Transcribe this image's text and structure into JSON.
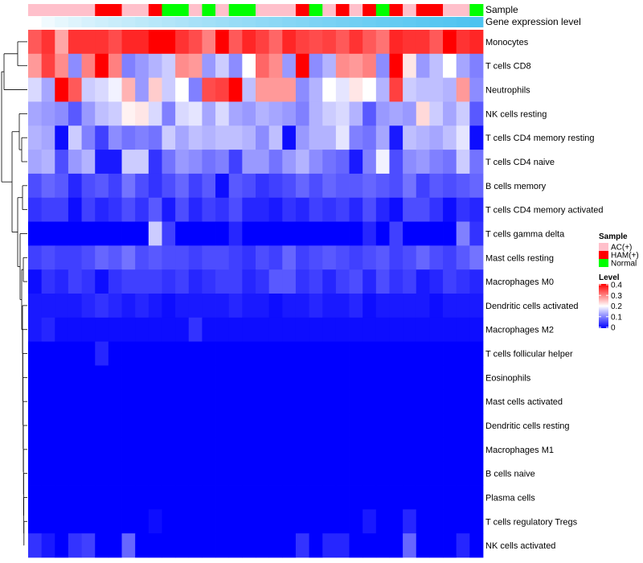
{
  "chart_data": {
    "type": "heatmap",
    "annotation_rows": [
      "Sample",
      "Gene expression level"
    ],
    "rows": [
      "Monocytes",
      "T cells CD8",
      "Neutrophils",
      "NK cells resting",
      "T cells CD4 memory resting",
      "T cells CD4 naive",
      "B cells memory",
      "T cells CD4 memory activated",
      "T cells gamma delta",
      "Mast cells resting",
      "Macrophages M0",
      "Dendritic cells activated",
      "Macrophages M2",
      "T cells follicular helper",
      "Eosinophils",
      "Mast cells activated",
      "Dendritic cells resting",
      "Macrophages M1",
      "B cells naive",
      "Plasma cells",
      "T cells regulatory  Tregs",
      "NK cells activated"
    ],
    "sample_groups": [
      "AC(+)",
      "AC(+)",
      "AC(+)",
      "AC(+)",
      "AC(+)",
      "HAM(+)",
      "HAM(+)",
      "AC(+)",
      "AC(+)",
      "HAM(+)",
      "Normal",
      "Normal",
      "AC(+)",
      "Normal",
      "AC(+)",
      "Normal",
      "Normal",
      "AC(+)",
      "AC(+)",
      "AC(+)",
      "HAM(+)",
      "Normal",
      "AC(+)",
      "HAM(+)",
      "AC(+)",
      "HAM(+)",
      "Normal",
      "HAM(+)",
      "AC(+)",
      "HAM(+)",
      "HAM(+)",
      "AC(+)",
      "AC(+)",
      "Normal"
    ],
    "values": [
      [
        0.33,
        0.36,
        0.27,
        0.36,
        0.36,
        0.36,
        0.34,
        0.37,
        0.37,
        0.4,
        0.4,
        0.36,
        0.34,
        0.3,
        0.4,
        0.33,
        0.37,
        0.35,
        0.32,
        0.37,
        0.35,
        0.34,
        0.35,
        0.33,
        0.36,
        0.33,
        0.31,
        0.37,
        0.36,
        0.36,
        0.33,
        0.4,
        0.36,
        0.37
      ],
      [
        0.28,
        0.35,
        0.29,
        0.11,
        0.3,
        0.4,
        0.3,
        0.1,
        0.12,
        0.14,
        0.16,
        0.29,
        0.28,
        0.12,
        0.16,
        0.11,
        0.2,
        0.32,
        0.29,
        0.12,
        0.4,
        0.11,
        0.14,
        0.29,
        0.28,
        0.3,
        0.11,
        0.4,
        0.22,
        0.12,
        0.15,
        0.2,
        0.13,
        0.1
      ],
      [
        0.17,
        0.13,
        0.4,
        0.33,
        0.16,
        0.17,
        0.19,
        0.26,
        0.12,
        0.24,
        0.16,
        0.2,
        0.1,
        0.34,
        0.35,
        0.4,
        0.15,
        0.28,
        0.28,
        0.28,
        0.11,
        0.14,
        0.2,
        0.18,
        0.22,
        0.2,
        0.14,
        0.35,
        0.16,
        0.15,
        0.15,
        0.14,
        0.28,
        0.11
      ],
      [
        0.13,
        0.12,
        0.11,
        0.07,
        0.12,
        0.15,
        0.16,
        0.21,
        0.22,
        0.17,
        0.1,
        0.17,
        0.18,
        0.13,
        0.17,
        0.13,
        0.12,
        0.14,
        0.13,
        0.12,
        0.1,
        0.14,
        0.16,
        0.17,
        0.14,
        0.07,
        0.12,
        0.13,
        0.12,
        0.23,
        0.16,
        0.13,
        0.16,
        0.07
      ],
      [
        0.14,
        0.13,
        0.01,
        0.16,
        0.1,
        0.05,
        0.11,
        0.09,
        0.1,
        0.09,
        0.16,
        0.13,
        0.15,
        0.14,
        0.15,
        0.15,
        0.14,
        0.11,
        0.15,
        0.01,
        0.12,
        0.14,
        0.14,
        0.18,
        0.1,
        0.09,
        0.13,
        0.02,
        0.15,
        0.14,
        0.13,
        0.15,
        0.18,
        0.01
      ],
      [
        0.13,
        0.14,
        0.06,
        0.12,
        0.14,
        0.02,
        0.02,
        0.16,
        0.16,
        0.04,
        0.09,
        0.12,
        0.11,
        0.09,
        0.1,
        0.05,
        0.12,
        0.12,
        0.09,
        0.12,
        0.14,
        0.11,
        0.09,
        0.08,
        0.02,
        0.1,
        0.19,
        0.06,
        0.11,
        0.12,
        0.1,
        0.09,
        0.16,
        0.09
      ],
      [
        0.06,
        0.08,
        0.07,
        0.03,
        0.06,
        0.07,
        0.05,
        0.09,
        0.06,
        0.04,
        0.06,
        0.08,
        0.05,
        0.07,
        0.01,
        0.07,
        0.06,
        0.04,
        0.05,
        0.06,
        0.08,
        0.06,
        0.08,
        0.07,
        0.07,
        0.08,
        0.07,
        0.06,
        0.09,
        0.05,
        0.07,
        0.06,
        0.07,
        0.08
      ],
      [
        0.04,
        0.05,
        0.05,
        0.01,
        0.05,
        0.03,
        0.04,
        0.06,
        0.04,
        0.07,
        0.02,
        0.06,
        0.03,
        0.05,
        0.04,
        0.06,
        0.03,
        0.03,
        0.02,
        0.04,
        0.03,
        0.05,
        0.04,
        0.05,
        0.03,
        0.06,
        0.03,
        0.01,
        0.06,
        0.06,
        0.04,
        0.01,
        0.04,
        0.03
      ],
      [
        0.0,
        0.0,
        0.0,
        0.0,
        0.0,
        0.0,
        0.0,
        0.0,
        0.0,
        0.16,
        0.05,
        0.0,
        0.0,
        0.0,
        0.0,
        0.03,
        0.0,
        0.0,
        0.0,
        0.0,
        0.0,
        0.0,
        0.0,
        0.0,
        0.0,
        0.03,
        0.0,
        0.05,
        0.0,
        0.0,
        0.0,
        0.0,
        0.1,
        0.04
      ],
      [
        0.05,
        0.06,
        0.05,
        0.05,
        0.06,
        0.08,
        0.07,
        0.09,
        0.06,
        0.07,
        0.06,
        0.06,
        0.05,
        0.06,
        0.06,
        0.05,
        0.04,
        0.06,
        0.05,
        0.08,
        0.05,
        0.06,
        0.07,
        0.06,
        0.05,
        0.06,
        0.07,
        0.05,
        0.06,
        0.08,
        0.06,
        0.05,
        0.07,
        0.09
      ],
      [
        0.01,
        0.04,
        0.03,
        0.05,
        0.04,
        0.01,
        0.04,
        0.05,
        0.05,
        0.05,
        0.04,
        0.05,
        0.03,
        0.04,
        0.05,
        0.05,
        0.03,
        0.04,
        0.07,
        0.07,
        0.04,
        0.05,
        0.03,
        0.05,
        0.06,
        0.03,
        0.06,
        0.04,
        0.05,
        0.02,
        0.03,
        0.05,
        0.04,
        0.03
      ],
      [
        0.02,
        0.02,
        0.02,
        0.02,
        0.03,
        0.04,
        0.03,
        0.02,
        0.03,
        0.02,
        0.01,
        0.02,
        0.02,
        0.02,
        0.02,
        0.03,
        0.02,
        0.02,
        0.01,
        0.02,
        0.02,
        0.03,
        0.02,
        0.02,
        0.03,
        0.01,
        0.02,
        0.02,
        0.02,
        0.02,
        0.01,
        0.02,
        0.02,
        0.02
      ],
      [
        0.02,
        0.03,
        0.01,
        0.01,
        0.01,
        0.01,
        0.01,
        0.01,
        0.01,
        0.01,
        0.01,
        0.01,
        0.04,
        0.01,
        0.01,
        0.01,
        0.01,
        0.01,
        0.01,
        0.01,
        0.01,
        0.01,
        0.01,
        0.01,
        0.01,
        0.01,
        0.01,
        0.01,
        0.01,
        0.01,
        0.01,
        0.01,
        0.01,
        0.01
      ],
      [
        0.0,
        0.0,
        0.0,
        0.0,
        0.0,
        0.03,
        0.0,
        0.0,
        0.0,
        0.0,
        0.0,
        0.0,
        0.0,
        0.0,
        0.0,
        0.0,
        0.0,
        0.0,
        0.0,
        0.0,
        0.0,
        0.0,
        0.0,
        0.0,
        0.0,
        0.0,
        0.0,
        0.0,
        0.0,
        0.0,
        0.0,
        0.0,
        0.0,
        0.0
      ],
      [
        0.0,
        0.0,
        0.0,
        0.0,
        0.0,
        0.0,
        0.0,
        0.0,
        0.0,
        0.0,
        0.0,
        0.0,
        0.0,
        0.0,
        0.0,
        0.0,
        0.0,
        0.0,
        0.0,
        0.0,
        0.0,
        0.0,
        0.0,
        0.0,
        0.0,
        0.0,
        0.0,
        0.0,
        0.0,
        0.0,
        0.0,
        0.0,
        0.0,
        0.0
      ],
      [
        0.0,
        0.0,
        0.0,
        0.0,
        0.0,
        0.0,
        0.0,
        0.0,
        0.0,
        0.0,
        0.0,
        0.0,
        0.0,
        0.0,
        0.0,
        0.0,
        0.0,
        0.0,
        0.0,
        0.0,
        0.0,
        0.0,
        0.0,
        0.0,
        0.0,
        0.0,
        0.0,
        0.0,
        0.0,
        0.0,
        0.0,
        0.0,
        0.0,
        0.0
      ],
      [
        0.0,
        0.0,
        0.0,
        0.0,
        0.0,
        0.0,
        0.0,
        0.0,
        0.0,
        0.0,
        0.0,
        0.0,
        0.0,
        0.0,
        0.0,
        0.0,
        0.0,
        0.0,
        0.0,
        0.0,
        0.0,
        0.0,
        0.0,
        0.0,
        0.0,
        0.0,
        0.0,
        0.0,
        0.0,
        0.0,
        0.0,
        0.0,
        0.0,
        0.0
      ],
      [
        0.0,
        0.0,
        0.0,
        0.0,
        0.0,
        0.0,
        0.0,
        0.0,
        0.0,
        0.0,
        0.0,
        0.0,
        0.0,
        0.0,
        0.0,
        0.0,
        0.0,
        0.0,
        0.0,
        0.0,
        0.0,
        0.0,
        0.0,
        0.0,
        0.0,
        0.0,
        0.0,
        0.0,
        0.0,
        0.0,
        0.0,
        0.0,
        0.0,
        0.0
      ],
      [
        0.0,
        0.0,
        0.0,
        0.0,
        0.0,
        0.0,
        0.0,
        0.0,
        0.0,
        0.0,
        0.0,
        0.0,
        0.0,
        0.0,
        0.0,
        0.0,
        0.0,
        0.0,
        0.0,
        0.0,
        0.0,
        0.0,
        0.0,
        0.0,
        0.0,
        0.0,
        0.0,
        0.0,
        0.0,
        0.0,
        0.0,
        0.0,
        0.0,
        0.0
      ],
      [
        0.0,
        0.0,
        0.0,
        0.0,
        0.0,
        0.0,
        0.0,
        0.0,
        0.0,
        0.0,
        0.0,
        0.0,
        0.0,
        0.0,
        0.0,
        0.0,
        0.0,
        0.0,
        0.0,
        0.0,
        0.0,
        0.0,
        0.0,
        0.0,
        0.0,
        0.0,
        0.0,
        0.0,
        0.0,
        0.0,
        0.0,
        0.0,
        0.0,
        0.0
      ],
      [
        0.0,
        0.0,
        0.0,
        0.0,
        0.0,
        0.0,
        0.0,
        0.0,
        0.0,
        0.01,
        0.0,
        0.0,
        0.0,
        0.0,
        0.0,
        0.0,
        0.0,
        0.0,
        0.0,
        0.0,
        0.0,
        0.0,
        0.0,
        0.0,
        0.0,
        0.02,
        0.0,
        0.0,
        0.03,
        0.0,
        0.0,
        0.0,
        0.0,
        0.0
      ],
      [
        0.04,
        0.02,
        0.0,
        0.04,
        0.05,
        0.0,
        0.0,
        0.08,
        0.0,
        0.0,
        0.0,
        0.0,
        0.0,
        0.0,
        0.0,
        0.0,
        0.0,
        0.0,
        0.0,
        0.0,
        0.04,
        0.0,
        0.03,
        0.03,
        0.0,
        0.0,
        0.0,
        0.0,
        0.08,
        0.0,
        0.0,
        0.0,
        0.03,
        0.0
      ]
    ],
    "color_scale": {
      "min": 0,
      "mid": 0.2,
      "max": 0.4,
      "low": "#0000ff",
      "midcolor": "#ffffff",
      "high": "#ff0000"
    },
    "legend": {
      "sample_title": "Sample",
      "sample_items": [
        {
          "label": "AC(+)",
          "color": "#ffc0cb"
        },
        {
          "label": "HAM(+)",
          "color": "#ff0000"
        },
        {
          "label": "Normal",
          "color": "#00ff00"
        }
      ],
      "level_title": "Level",
      "level_ticks": [
        "0.4",
        "0.3",
        "0.2",
        "0.1",
        "0"
      ]
    },
    "gene_bar_colors": {
      "low": "#ffffff",
      "high": "#4dc3f0"
    }
  }
}
